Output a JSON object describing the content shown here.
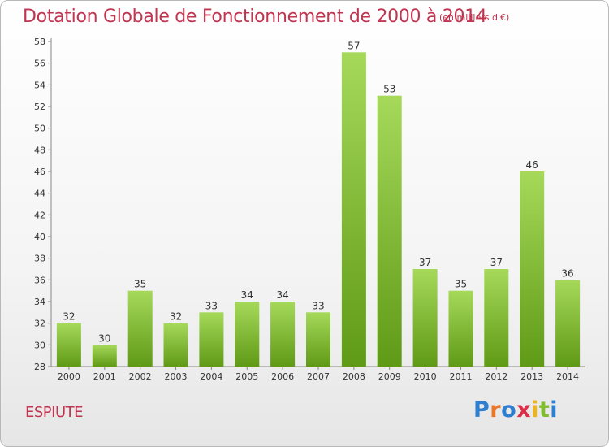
{
  "header": {
    "title": "Dotation Globale de Fonctionnement de 2000 à 2014",
    "unit": "(en milliers d'€)"
  },
  "footer": {
    "commune": "ESPIUTE",
    "logo_letters": [
      "P",
      "r",
      "o",
      "x",
      "i",
      "t",
      "i"
    ]
  },
  "colors": {
    "title": "#c0354f",
    "bar_top": "#a6d95a",
    "bar_bottom": "#5f9a16",
    "logo": [
      "#2f7fd1",
      "#e8762b",
      "#2f7fd1",
      "#dd2f4a",
      "#f0b31b",
      "#7fbd2f",
      "#2f7fd1"
    ]
  },
  "chart_data": {
    "type": "bar",
    "title": "Dotation Globale de Fonctionnement de 2000 à 2014",
    "categories": [
      "2000",
      "2001",
      "2002",
      "2003",
      "2004",
      "2005",
      "2006",
      "2007",
      "2008",
      "2009",
      "2010",
      "2011",
      "2012",
      "2013",
      "2014"
    ],
    "values": [
      32,
      30,
      35,
      32,
      33,
      34,
      34,
      33,
      57,
      53,
      37,
      35,
      37,
      46,
      36
    ],
    "ylim": [
      28,
      58
    ],
    "yticks": [
      28,
      30,
      32,
      34,
      36,
      38,
      40,
      42,
      44,
      46,
      48,
      50,
      52,
      54,
      56,
      58
    ],
    "grid": false,
    "xlabel": "",
    "ylabel": ""
  }
}
